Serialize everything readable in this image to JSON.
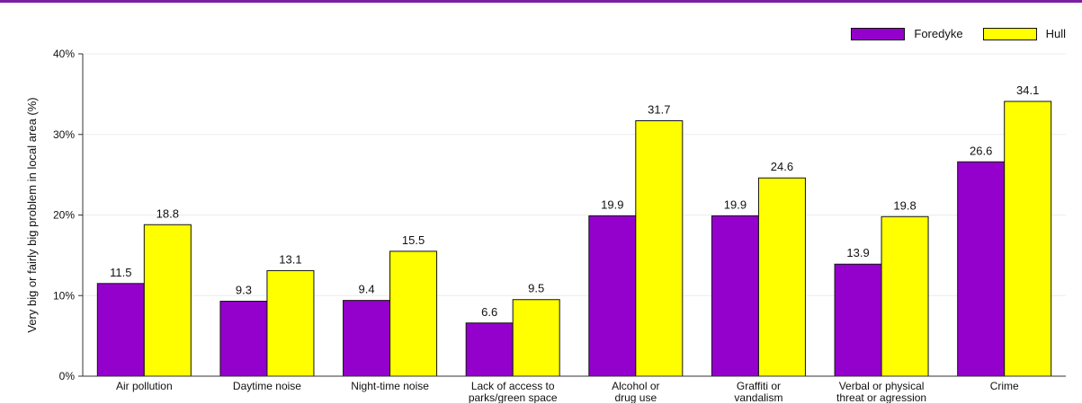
{
  "chart_data": {
    "type": "bar",
    "title": "",
    "xlabel": "",
    "ylabel": "Very big or fairly big problem in local area (%)",
    "ylim": [
      0,
      40
    ],
    "yticks": [
      "0%",
      "10%",
      "20%",
      "30%",
      "40%"
    ],
    "grid": true,
    "legend_position": "top-right",
    "categories": [
      "Air pollution",
      "Daytime noise",
      "Night-time noise",
      "Lack of access to\nparks/green space",
      "Alcohol or\ndrug use",
      "Graffiti or\nvandalism",
      "Verbal or physical\nthreat or agression",
      "Crime"
    ],
    "series": [
      {
        "name": "Foredyke",
        "color": "#9400cc",
        "values": [
          11.5,
          9.3,
          9.4,
          6.6,
          19.9,
          19.9,
          13.9,
          26.6
        ]
      },
      {
        "name": "Hull",
        "color": "#ffff00",
        "values": [
          18.8,
          13.1,
          15.5,
          9.5,
          31.7,
          24.6,
          19.8,
          34.1
        ]
      }
    ]
  }
}
